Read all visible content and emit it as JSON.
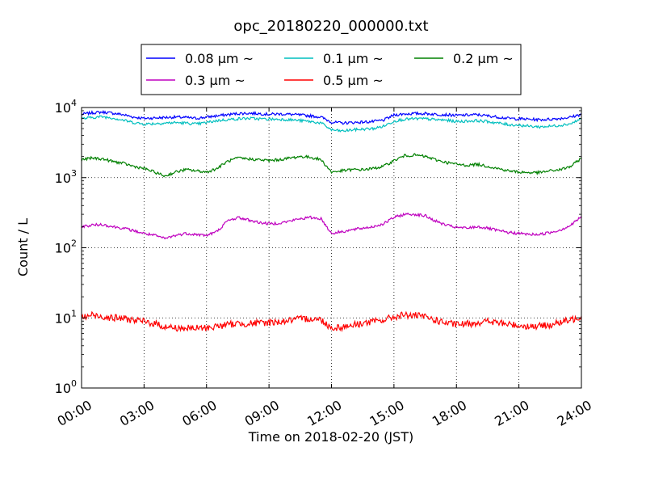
{
  "chart_data": {
    "type": "line",
    "title": "opc_20180220_000000.txt",
    "xlabel": "Time on 2018-02-20 (JST)",
    "ylabel": "Count / L",
    "y_scale": "log",
    "ylim": [
      1,
      10000
    ],
    "xlim": [
      "00:00",
      "24:00"
    ],
    "x_ticks": [
      "00:00",
      "03:00",
      "06:00",
      "09:00",
      "12:00",
      "15:00",
      "18:00",
      "21:00",
      "24:00"
    ],
    "y_ticks": [
      {
        "base": "10",
        "exp": "0",
        "value": 1
      },
      {
        "base": "10",
        "exp": "1",
        "value": 10
      },
      {
        "base": "10",
        "exp": "2",
        "value": 100
      },
      {
        "base": "10",
        "exp": "3",
        "value": 1000
      },
      {
        "base": "10",
        "exp": "4",
        "value": 10000
      }
    ],
    "grid": true,
    "legend_placement": "top-center",
    "x": [
      "00:00",
      "00:30",
      "01:00",
      "01:30",
      "02:00",
      "02:30",
      "03:00",
      "03:30",
      "04:00",
      "04:30",
      "05:00",
      "05:30",
      "06:00",
      "06:30",
      "07:00",
      "07:30",
      "08:00",
      "08:30",
      "09:00",
      "09:30",
      "10:00",
      "10:30",
      "11:00",
      "11:30",
      "12:00",
      "12:30",
      "13:00",
      "13:30",
      "14:00",
      "14:30",
      "15:00",
      "15:30",
      "16:00",
      "16:30",
      "17:00",
      "17:30",
      "18:00",
      "18:30",
      "19:00",
      "19:30",
      "20:00",
      "20:30",
      "21:00",
      "21:30",
      "22:00",
      "22:30",
      "23:00",
      "23:30",
      "24:00"
    ],
    "series": [
      {
        "name": "0.08 µm ~",
        "color": "#0000ff",
        "values": [
          8000,
          8400,
          8600,
          8300,
          7900,
          7300,
          7000,
          7100,
          7200,
          7300,
          7200,
          7000,
          7300,
          7600,
          7900,
          8200,
          8300,
          8200,
          8000,
          8100,
          8000,
          7800,
          7600,
          7300,
          6200,
          6000,
          6100,
          6200,
          6300,
          6600,
          7800,
          8100,
          8200,
          8200,
          8000,
          7900,
          7700,
          7800,
          7900,
          7600,
          7300,
          7000,
          6900,
          6800,
          6700,
          6800,
          7000,
          7300,
          8000
        ]
      },
      {
        "name": "0.1 µm ~",
        "color": "#00bfbf",
        "values": [
          6900,
          7200,
          7400,
          7100,
          6600,
          6100,
          5800,
          5900,
          6000,
          6100,
          6000,
          5800,
          6100,
          6500,
          6700,
          6900,
          7000,
          6900,
          6800,
          6800,
          6700,
          6500,
          6300,
          6000,
          4800,
          4600,
          4800,
          4900,
          5000,
          5400,
          6400,
          6800,
          6900,
          6900,
          6700,
          6600,
          6300,
          6400,
          6500,
          6300,
          6000,
          5700,
          5600,
          5400,
          5300,
          5400,
          5600,
          5900,
          6900
        ]
      },
      {
        "name": "0.2 µm ~",
        "color": "#008000",
        "values": [
          1800,
          1900,
          1850,
          1700,
          1600,
          1450,
          1350,
          1200,
          1050,
          1200,
          1300,
          1250,
          1200,
          1350,
          1700,
          1900,
          1850,
          1800,
          1750,
          1800,
          1900,
          2000,
          1950,
          1800,
          1200,
          1250,
          1300,
          1300,
          1350,
          1450,
          1750,
          2050,
          2100,
          2000,
          1800,
          1650,
          1550,
          1500,
          1550,
          1450,
          1350,
          1250,
          1200,
          1180,
          1180,
          1250,
          1300,
          1450,
          1900
        ]
      },
      {
        "name": "0.3 µm ~",
        "color": "#bf00bf",
        "values": [
          200,
          210,
          215,
          200,
          190,
          175,
          160,
          150,
          135,
          150,
          160,
          155,
          150,
          170,
          240,
          270,
          250,
          230,
          220,
          225,
          240,
          260,
          270,
          260,
          160,
          170,
          180,
          190,
          200,
          220,
          270,
          300,
          300,
          285,
          240,
          210,
          195,
          190,
          200,
          190,
          175,
          165,
          160,
          155,
          155,
          165,
          180,
          210,
          280
        ]
      },
      {
        "name": "0.5 µm ~",
        "color": "#ff0000",
        "values": [
          10,
          11,
          10.5,
          10,
          9.8,
          9.3,
          8.8,
          8.3,
          7.5,
          7.2,
          7.1,
          7.1,
          7.2,
          7.6,
          8.0,
          8.3,
          8.3,
          8.4,
          8.6,
          8.8,
          9.2,
          9.6,
          9.8,
          9.4,
          7.2,
          7.4,
          7.9,
          8.4,
          8.8,
          9.3,
          10.3,
          11,
          10.8,
          10.3,
          9.3,
          8.4,
          8.0,
          8.2,
          8.6,
          8.9,
          8.5,
          8.1,
          7.8,
          7.6,
          7.6,
          8.0,
          8.6,
          9.3,
          10.6
        ]
      }
    ]
  }
}
